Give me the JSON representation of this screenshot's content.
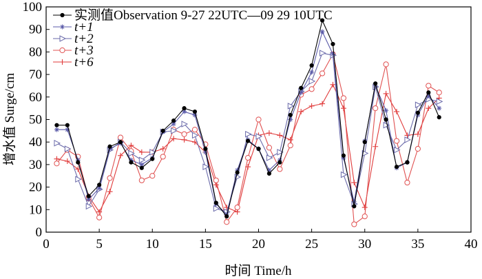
{
  "chart_data": {
    "type": "line",
    "xlabel": "时间 Time/h",
    "ylabel": "增水值 Surge/cm",
    "xlim": [
      0,
      40
    ],
    "ylim": [
      0,
      100
    ],
    "xticks": [
      0,
      5,
      10,
      15,
      20,
      25,
      30,
      35,
      40
    ],
    "yticks": [
      0,
      10,
      20,
      30,
      40,
      50,
      60,
      70,
      80,
      90,
      100
    ],
    "grid": false,
    "legend_position": "top-left",
    "x": [
      1,
      2,
      3,
      4,
      5,
      6,
      7,
      8,
      9,
      10,
      11,
      12,
      13,
      14,
      15,
      16,
      17,
      18,
      19,
      20,
      21,
      22,
      23,
      24,
      25,
      26,
      27,
      28,
      29,
      30,
      31,
      32,
      33,
      34,
      35,
      36,
      37
    ],
    "series": [
      {
        "name": "实测值Observation 9-27 22UTC—09 29 10UTC",
        "color": "#000000",
        "marker": "filled-circle",
        "values": [
          47.5,
          47.5,
          31,
          16,
          21,
          38,
          40,
          31,
          28.5,
          32.5,
          45,
          49.5,
          55,
          53.5,
          37,
          13,
          7,
          26.5,
          40.5,
          37,
          26,
          31,
          52,
          64,
          74,
          94,
          83.5,
          34,
          11.5,
          40,
          66,
          50,
          29,
          31,
          53,
          62,
          51
        ]
      },
      {
        "name": "t+1",
        "color": "#5a5aa8",
        "marker": "star",
        "values": [
          45.5,
          45.5,
          32,
          14.5,
          19.5,
          37,
          39.5,
          32,
          30,
          33,
          44.5,
          48,
          53.5,
          52,
          35.5,
          12.5,
          8,
          27.5,
          41,
          37,
          27.5,
          32,
          50,
          62,
          71,
          89,
          79,
          33,
          13.5,
          40.5,
          65,
          54,
          28.5,
          31,
          52,
          60.5,
          55
        ]
      },
      {
        "name": "t+2",
        "color": "#6a6aaa",
        "marker": "open-triangle",
        "values": [
          39.5,
          37,
          23.5,
          11.5,
          19,
          36.5,
          40,
          35,
          32,
          35.5,
          44.5,
          45,
          48,
          43,
          29,
          10.5,
          9,
          24.5,
          43.5,
          42.5,
          33,
          35.5,
          56,
          62.5,
          67,
          79.5,
          78.5,
          25.5,
          12.5,
          35,
          64.5,
          47.5,
          36.5,
          41,
          56.5,
          59,
          58
        ]
      },
      {
        "name": "t+3",
        "color": "#e05050",
        "marker": "open-circle",
        "values": [
          30.5,
          36.5,
          33.5,
          15,
          6.5,
          24,
          42,
          36,
          23,
          25,
          33.5,
          45.5,
          43.5,
          45.5,
          39,
          23,
          4.5,
          11,
          33,
          50,
          37.5,
          28,
          38.5,
          61,
          63.5,
          70.5,
          79,
          59.5,
          3.5,
          7,
          55,
          74.5,
          40.5,
          22,
          37,
          65,
          62
        ]
      },
      {
        "name": "t+6",
        "color": "#e03a3a",
        "marker": "plus",
        "values": [
          32.5,
          31.5,
          28,
          16,
          9,
          18,
          34,
          38.5,
          35.5,
          35.5,
          37,
          41.5,
          41,
          40,
          35.5,
          21,
          11,
          9,
          29,
          43,
          44,
          43,
          41,
          53.5,
          56,
          57,
          65.5,
          55,
          22,
          11,
          38,
          61.5,
          53.5,
          43,
          43.5,
          55,
          59.5
        ]
      }
    ]
  }
}
